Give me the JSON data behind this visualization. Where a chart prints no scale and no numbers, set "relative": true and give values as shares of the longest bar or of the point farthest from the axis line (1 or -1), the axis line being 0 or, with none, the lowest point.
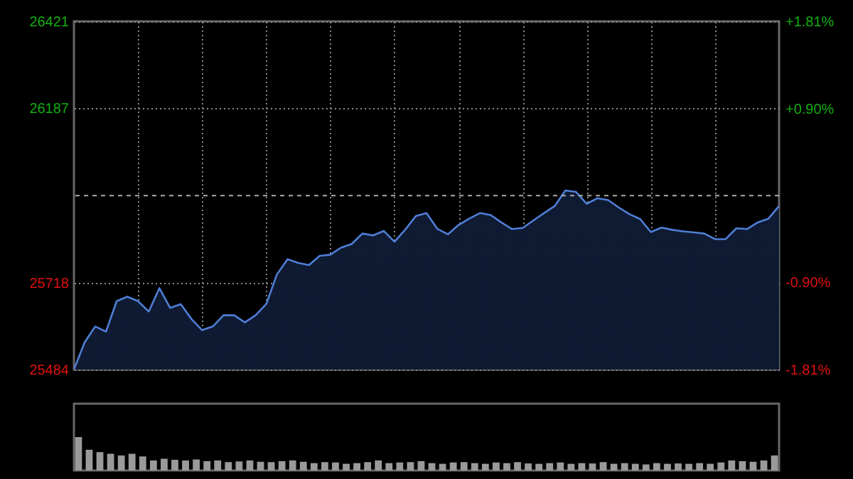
{
  "chart_data": [
    {
      "type": "area",
      "categories": [
        null,
        null,
        null,
        null,
        null,
        null,
        null,
        null,
        null,
        null,
        null,
        null,
        null,
        null,
        null,
        null,
        null,
        null,
        null,
        null,
        null,
        null,
        null,
        null,
        null,
        null,
        null,
        null,
        null,
        null,
        null,
        null,
        null,
        null,
        null,
        null,
        null,
        null,
        null,
        null,
        null,
        null,
        null,
        null,
        null,
        null,
        null,
        null,
        null,
        null,
        null,
        null,
        null,
        null,
        null,
        null,
        null,
        null,
        null,
        null,
        null,
        null,
        null,
        null,
        null,
        null,
        null
      ],
      "series": [
        {
          "color": "#4f7fd6",
          "values": [
            25484,
            25557,
            25600,
            25586,
            25668,
            25680,
            25668,
            25640,
            25703,
            25650,
            25660,
            25620,
            25590,
            25600,
            25630,
            25630,
            25611,
            25630,
            25660,
            25740,
            25781,
            25771,
            25765,
            25790,
            25793,
            25812,
            25822,
            25850,
            25845,
            25857,
            25828,
            25860,
            25897,
            25905,
            25863,
            25848,
            25873,
            25890,
            25905,
            25900,
            25880,
            25862,
            25865,
            25885,
            25905,
            25924,
            25966,
            25962,
            25930,
            25945,
            25940,
            25920,
            25902,
            25889,
            25854,
            25866,
            25860,
            25856,
            25853,
            25850,
            25835,
            25835,
            25864,
            25862,
            25880,
            25890,
            25924
          ]
        }
      ],
      "ylim": [
        25484,
        26421
      ],
      "yticks": [
        25484,
        25718,
        26187,
        26421
      ],
      "y2lim": [
        -1.81,
        1.81
      ],
      "y2ticks": [
        {
          "value": -1.81,
          "label": "-1.81%"
        },
        {
          "value": -0.9,
          "label": "-0.90%"
        },
        {
          "value": 0.9,
          "label": "+0.90%"
        },
        {
          "value": 1.81,
          "label": "+1.81%"
        }
      ],
      "ref_lines": [
        {
          "axis": "y",
          "value": 25952,
          "line_style": "dashed"
        }
      ],
      "grid": true
    },
    {
      "type": "bar",
      "relative": true,
      "color": "#9a9a9a",
      "categories": [
        null,
        null,
        null,
        null,
        null,
        null,
        null,
        null,
        null,
        null,
        null,
        null,
        null,
        null,
        null,
        null,
        null,
        null,
        null,
        null,
        null,
        null,
        null,
        null,
        null,
        null,
        null,
        null,
        null,
        null,
        null,
        null,
        null,
        null,
        null,
        null,
        null,
        null,
        null,
        null,
        null,
        null,
        null,
        null,
        null,
        null,
        null,
        null,
        null,
        null,
        null,
        null,
        null,
        null,
        null,
        null,
        null,
        null,
        null,
        null,
        null,
        null,
        null,
        null,
        null,
        null
      ],
      "values": [
        1,
        0.62,
        0.55,
        0.5,
        0.45,
        0.5,
        0.42,
        0.3,
        0.35,
        0.32,
        0.3,
        0.33,
        0.28,
        0.3,
        0.25,
        0.27,
        0.3,
        0.26,
        0.25,
        0.28,
        0.3,
        0.26,
        0.22,
        0.25,
        0.24,
        0.2,
        0.22,
        0.25,
        0.3,
        0.22,
        0.24,
        0.25,
        0.28,
        0.22,
        0.2,
        0.24,
        0.25,
        0.22,
        0.2,
        0.24,
        0.22,
        0.25,
        0.21,
        0.2,
        0.22,
        0.24,
        0.2,
        0.22,
        0.21,
        0.25,
        0.2,
        0.22,
        0.2,
        0.18,
        0.22,
        0.2,
        0.21,
        0.2,
        0.22,
        0.2,
        0.24,
        0.3,
        0.28,
        0.26,
        0.3,
        0.45
      ]
    }
  ]
}
